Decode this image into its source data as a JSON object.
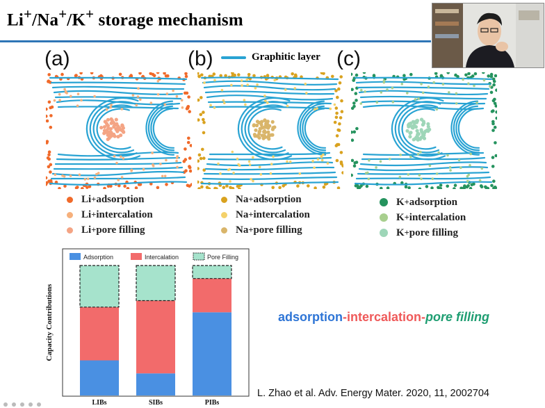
{
  "slide": {
    "title_main": "Li",
    "title_sup1": "+",
    "title_sep1": "/Na",
    "title_sup2": "+",
    "title_sep2": "/K",
    "title_sup3": "+",
    "title_rest": " storage mechanism"
  },
  "graphic_layer_label": "Graphitic layer",
  "panels": [
    {
      "label": "(a)",
      "color_ads": "#f06a2a",
      "color_int": "#f6b07c",
      "color_pore": "#f4a484",
      "legend": [
        {
          "ion": "Li",
          "sup": "+",
          "text": " adsorption"
        },
        {
          "ion": "Li",
          "sup": "+",
          "text": " intercalation"
        },
        {
          "ion": "Li",
          "sup": "+",
          "text": " pore filling"
        }
      ]
    },
    {
      "label": "(b)",
      "color_ads": "#d9a21f",
      "color_int": "#f4d16a",
      "color_pore": "#d9b56a",
      "legend": [
        {
          "ion": "Na",
          "sup": "+",
          "text": " adsorption"
        },
        {
          "ion": "Na",
          "sup": "+",
          "text": " intercalation"
        },
        {
          "ion": "Na",
          "sup": "+",
          "text": " pore filling"
        }
      ]
    },
    {
      "label": "(c)",
      "color_ads": "#25935e",
      "color_int": "#a8cf8e",
      "color_pore": "#9ed6b8",
      "legend": [
        {
          "ion": "K",
          "sup": "+",
          "text": "adsorption"
        },
        {
          "ion": "K",
          "sup": "+",
          "text": " intercalation"
        },
        {
          "ion": "K",
          "sup": "+",
          "text": " pore filling"
        }
      ]
    }
  ],
  "layer_color": "#29a3d3",
  "chart_data": {
    "type": "bar",
    "stacked": true,
    "categories": [
      "LIBs",
      "SIBs",
      "PIBs"
    ],
    "series": [
      {
        "name": "Adsorption",
        "color": "#4a90e2",
        "values": [
          0.27,
          0.17,
          0.64
        ]
      },
      {
        "name": "Intercalation",
        "color": "#f26b6b",
        "values": [
          0.41,
          0.56,
          0.26
        ]
      },
      {
        "name": "Pore Filling",
        "color": "#a6e3cc",
        "values": [
          0.32,
          0.27,
          0.1
        ]
      }
    ],
    "ylabel": "Capacity Contributions",
    "ylim": [
      0,
      1
    ],
    "legend_position": "top"
  },
  "tagline": {
    "part1": "adsorption",
    "dash1": "-",
    "part2": "intercalation",
    "dash2": "-",
    "part3": "pore filling"
  },
  "citation": "L. Zhao et al. Adv. Energy Mater. 2020, 11, 2002704"
}
